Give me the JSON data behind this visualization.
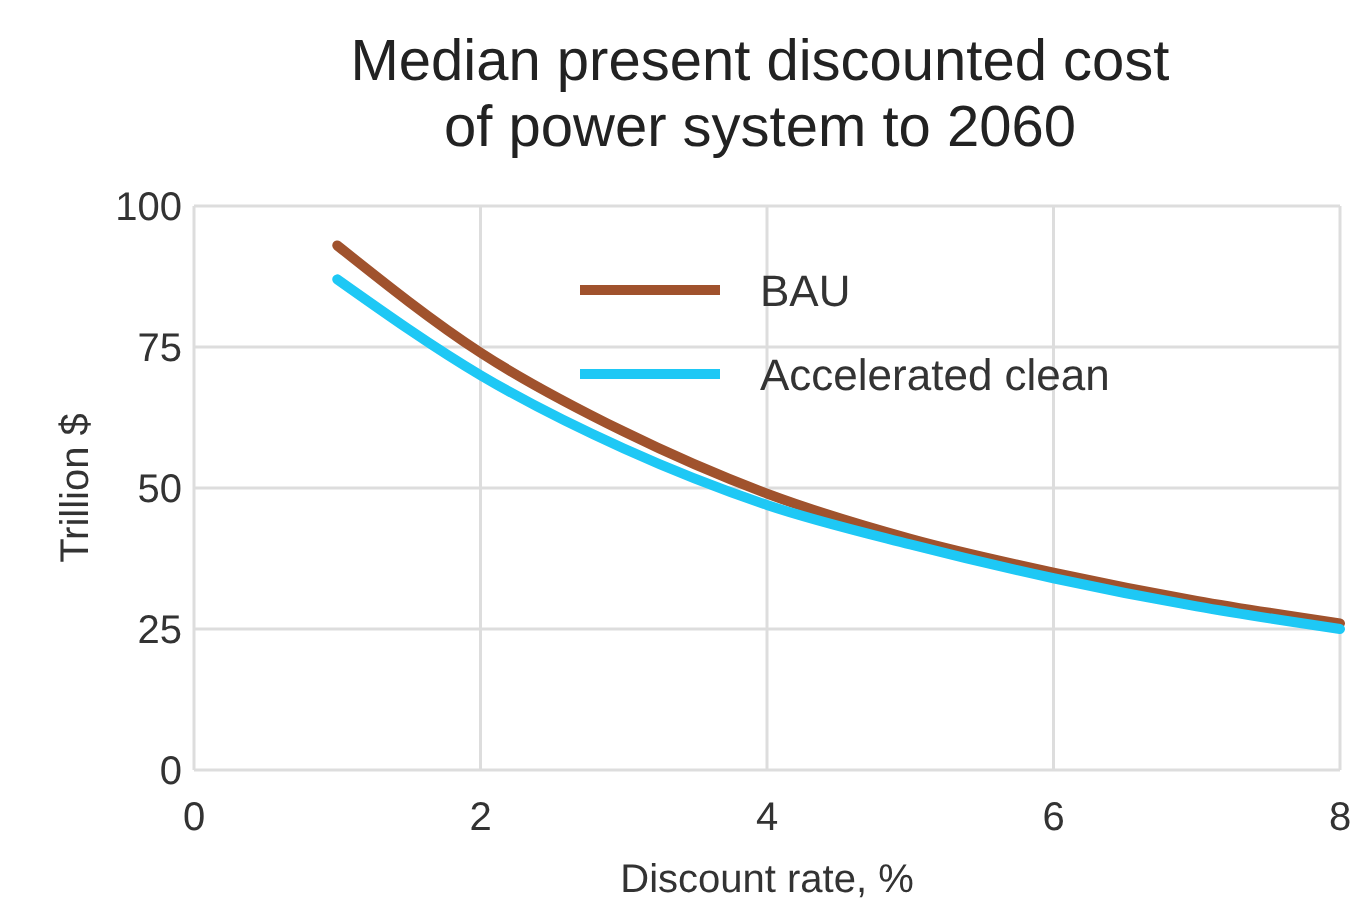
{
  "chart_data": {
    "type": "line",
    "title": "Median present discounted cost\nof power system to 2060",
    "xlabel": "Discount rate, %",
    "ylabel": "Trillion $",
    "x": [
      1,
      2,
      3,
      4,
      5,
      6,
      7,
      8
    ],
    "series": [
      {
        "name": "BAU",
        "color": "#a0522d",
        "values": [
          93,
          74,
          60,
          49,
          41,
          35,
          30,
          26
        ]
      },
      {
        "name": "Accelerated clean",
        "color": "#1ec8f5",
        "values": [
          87,
          70,
          57,
          47,
          40,
          34,
          29,
          25
        ]
      }
    ],
    "xlim": [
      0,
      8
    ],
    "xticks": [
      0,
      2,
      4,
      6,
      8
    ],
    "ylim": [
      0,
      100
    ],
    "yticks": [
      0,
      25,
      50,
      75,
      100
    ],
    "grid": true,
    "legend": "top right",
    "line_style": "solid",
    "marker": "none"
  }
}
